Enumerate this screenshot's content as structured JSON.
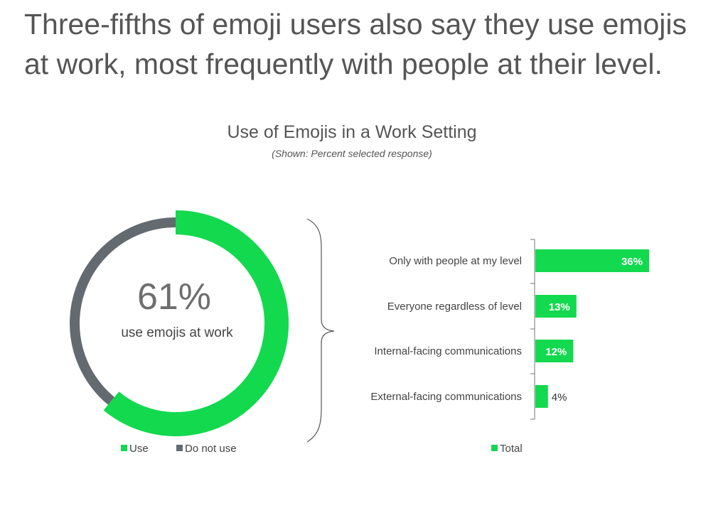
{
  "headline": {
    "line1": "Three-fifths of emoji users also say they use emojis",
    "line2": "at work, most frequently with people at their level."
  },
  "colors": {
    "green": "#12d94e",
    "gray": "#636a70"
  },
  "chart_data": [
    {
      "type": "pie",
      "title": "Use of Emojis in a Work Setting",
      "subtitle": "(Shown: Percent selected response)",
      "center_value": "61%",
      "center_label": "use emojis at work",
      "slices": [
        {
          "name": "Use",
          "value": 61
        },
        {
          "name": "Do not use",
          "value": 39
        }
      ],
      "legend": [
        "Use",
        "Do not use"
      ],
      "legend_position": "bottom"
    },
    {
      "type": "bar",
      "orientation": "horizontal",
      "categories": [
        "Only with people at my level",
        "Everyone regardless of level",
        "Internal-facing communications",
        "External-facing communications"
      ],
      "series": [
        {
          "name": "Total",
          "values": [
            36,
            13,
            12,
            4
          ]
        }
      ],
      "value_labels": [
        "36%",
        "13%",
        "12%",
        "4%"
      ],
      "xlim": [
        0,
        36
      ],
      "legend": [
        "Total"
      ],
      "legend_position": "bottom"
    }
  ]
}
